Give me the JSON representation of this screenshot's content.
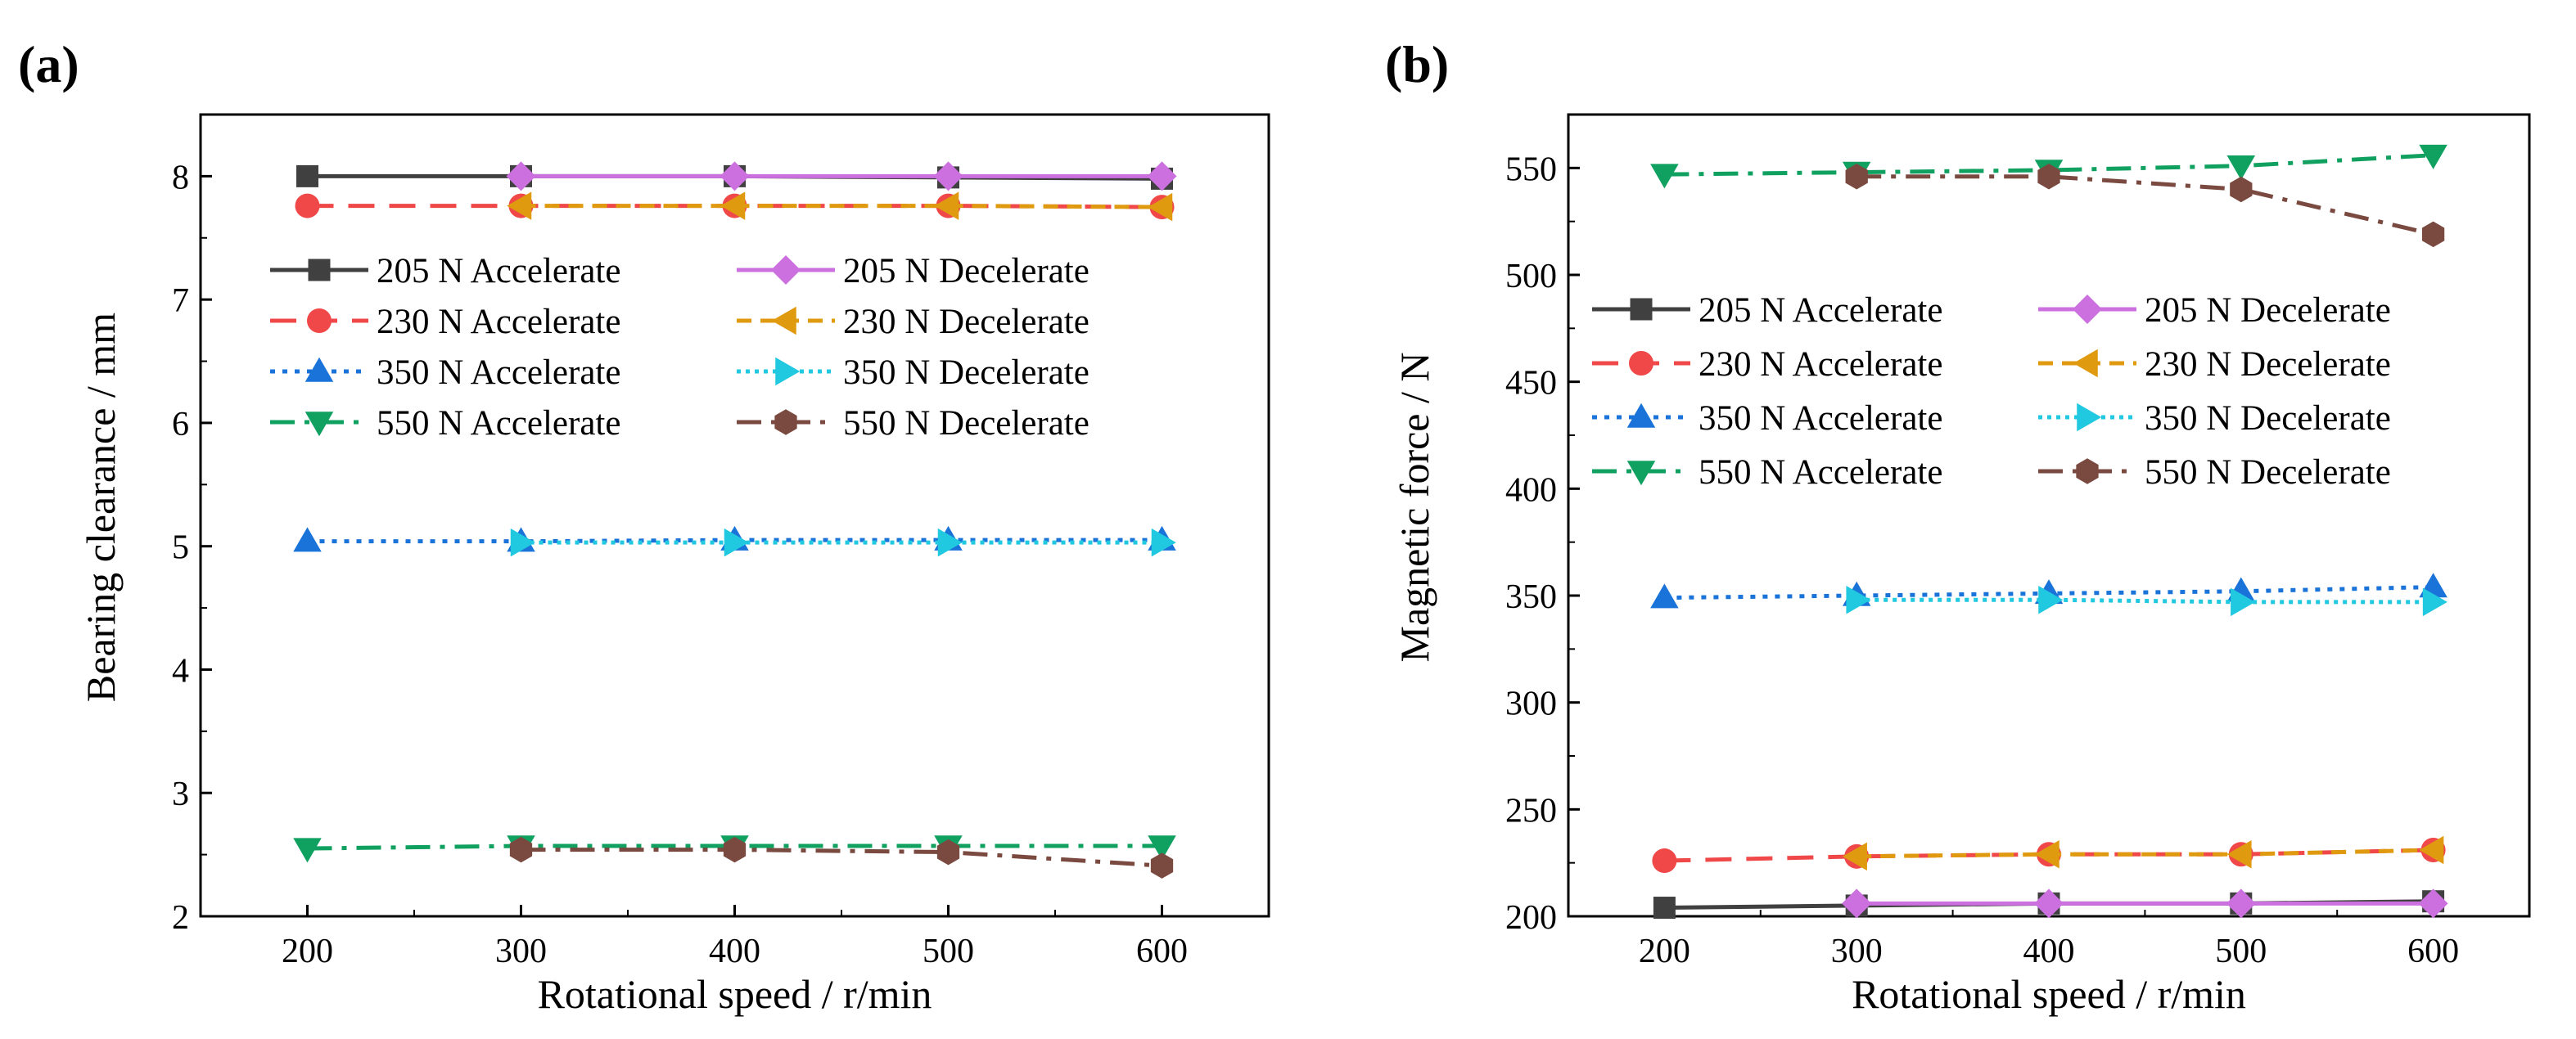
{
  "chart_data": [
    {
      "type": "line",
      "panel_label": "(a)",
      "xlabel": "Rotational speed / r/min",
      "ylabel": "Bearing clearance / mm",
      "xlim": [
        150,
        650
      ],
      "ylim": [
        2,
        8.5
      ],
      "xticks": [
        200,
        300,
        400,
        500,
        600
      ],
      "yticks": [
        2,
        3,
        4,
        5,
        6,
        7,
        8
      ],
      "legend_position": "upper-left",
      "series": [
        {
          "name": "205 N Accelerate",
          "color": "#404040",
          "dash": "solid",
          "marker": "square",
          "x": [
            200,
            300,
            400,
            500,
            600
          ],
          "y": [
            8.0,
            8.0,
            8.0,
            7.99,
            7.98
          ]
        },
        {
          "name": "205 N Decelerate",
          "color": "#cc70e0",
          "dash": "solid",
          "marker": "diamond",
          "x": [
            300,
            400,
            500,
            600
          ],
          "y": [
            8.0,
            8.0,
            8.0,
            8.0
          ]
        },
        {
          "name": "230 N Accelerate",
          "color": "#f04848",
          "dash": "longdash",
          "marker": "circle",
          "x": [
            200,
            300,
            400,
            500,
            600
          ],
          "y": [
            7.76,
            7.76,
            7.76,
            7.76,
            7.75
          ]
        },
        {
          "name": "230 N Decelerate",
          "color": "#e09a10",
          "dash": "shortdash",
          "marker": "triangle-left",
          "x": [
            300,
            400,
            500,
            600
          ],
          "y": [
            7.76,
            7.76,
            7.76,
            7.75
          ]
        },
        {
          "name": "350 N Accelerate",
          "color": "#1a73d9",
          "dash": "dot",
          "marker": "triangle-up",
          "x": [
            200,
            300,
            400,
            500,
            600
          ],
          "y": [
            5.04,
            5.04,
            5.05,
            5.05,
            5.05
          ]
        },
        {
          "name": "350 N Decelerate",
          "color": "#20c8e0",
          "dash": "dotfine",
          "marker": "triangle-right",
          "x": [
            300,
            400,
            500,
            600
          ],
          "y": [
            5.03,
            5.03,
            5.03,
            5.03
          ]
        },
        {
          "name": "550 N Accelerate",
          "color": "#10a060",
          "dash": "dashdot",
          "marker": "triangle-down",
          "x": [
            200,
            300,
            400,
            500,
            600
          ],
          "y": [
            2.55,
            2.57,
            2.57,
            2.57,
            2.57
          ]
        },
        {
          "name": "550 N Decelerate",
          "color": "#7a4a40",
          "dash": "dashdot",
          "marker": "hexagon",
          "x": [
            300,
            400,
            500,
            600
          ],
          "y": [
            2.54,
            2.54,
            2.52,
            2.41
          ]
        }
      ]
    },
    {
      "type": "line",
      "panel_label": "(b)",
      "xlabel": "Rotational speed / r/min",
      "ylabel": "Magnetic force / N",
      "xlim": [
        150,
        650
      ],
      "ylim": [
        200,
        575
      ],
      "xticks": [
        200,
        300,
        400,
        500,
        600
      ],
      "yticks": [
        200,
        250,
        300,
        350,
        400,
        450,
        500,
        550
      ],
      "legend_position": "upper-left",
      "series": [
        {
          "name": "205 N Accelerate",
          "color": "#404040",
          "dash": "solid",
          "marker": "square",
          "x": [
            200,
            300,
            400,
            500,
            600
          ],
          "y": [
            204,
            205,
            206,
            206,
            207
          ]
        },
        {
          "name": "205 N Decelerate",
          "color": "#cc70e0",
          "dash": "solid",
          "marker": "diamond",
          "x": [
            300,
            400,
            500,
            600
          ],
          "y": [
            206,
            206,
            206,
            206
          ]
        },
        {
          "name": "230 N Accelerate",
          "color": "#f04848",
          "dash": "longdash",
          "marker": "circle",
          "x": [
            200,
            300,
            400,
            500,
            600
          ],
          "y": [
            226,
            228,
            229,
            229,
            231
          ]
        },
        {
          "name": "230 N Decelerate",
          "color": "#e09a10",
          "dash": "shortdash",
          "marker": "triangle-left",
          "x": [
            300,
            400,
            500,
            600
          ],
          "y": [
            228,
            229,
            229,
            231
          ]
        },
        {
          "name": "350 N Accelerate",
          "color": "#1a73d9",
          "dash": "dot",
          "marker": "triangle-up",
          "x": [
            200,
            300,
            400,
            500,
            600
          ],
          "y": [
            349,
            350,
            351,
            352,
            354
          ]
        },
        {
          "name": "350 N Decelerate",
          "color": "#20c8e0",
          "dash": "dotfine",
          "marker": "triangle-right",
          "x": [
            300,
            400,
            500,
            600
          ],
          "y": [
            348,
            348,
            347,
            347
          ]
        },
        {
          "name": "550 N Accelerate",
          "color": "#10a060",
          "dash": "dashdot",
          "marker": "triangle-down",
          "x": [
            200,
            300,
            400,
            500,
            600
          ],
          "y": [
            547,
            548,
            549,
            551,
            556
          ]
        },
        {
          "name": "550 N Decelerate",
          "color": "#7a4a40",
          "dash": "dashdot",
          "marker": "hexagon",
          "x": [
            300,
            400,
            500,
            600
          ],
          "y": [
            546,
            546,
            540,
            519
          ]
        }
      ]
    }
  ]
}
